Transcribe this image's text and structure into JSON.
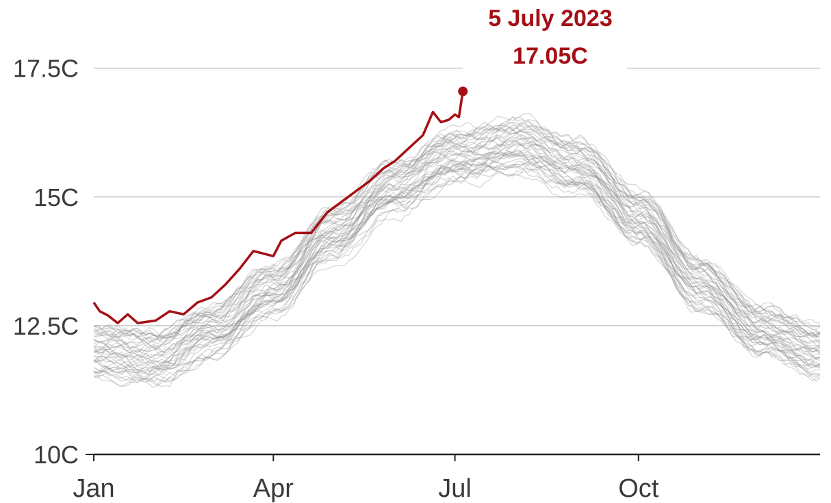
{
  "chart_data": {
    "type": "line",
    "title": "",
    "xlabel": "",
    "ylabel": "",
    "ylim": [
      10,
      18
    ],
    "yticks": [
      {
        "value": 10,
        "label": "10C"
      },
      {
        "value": 12.5,
        "label": "12.5C"
      },
      {
        "value": 15,
        "label": "15C"
      },
      {
        "value": 17.5,
        "label": "17.5C"
      }
    ],
    "xticks": [
      {
        "month_start": "Jan",
        "label": "Jan"
      },
      {
        "month_start": "Apr",
        "label": "Apr"
      },
      {
        "month_start": "Jul",
        "label": "Jul"
      },
      {
        "month_start": "Oct",
        "label": "Oct"
      }
    ],
    "grid": "horizontal",
    "colors": {
      "highlight": "#a50f15",
      "background_series": "#8c8c8c",
      "grid": "#c8c8c8",
      "axis": "#222222"
    },
    "background_series_description": "daily global sea surface temperature curves for previous years (grey, unlabelled)",
    "background_profile": [
      {
        "x": "Jan 1",
        "y": 12.0
      },
      {
        "x": "Feb 1",
        "y": 11.9
      },
      {
        "x": "Mar 1",
        "y": 12.4
      },
      {
        "x": "Apr 1",
        "y": 13.2
      },
      {
        "x": "May 1",
        "y": 14.3
      },
      {
        "x": "Jun 1",
        "y": 15.2
      },
      {
        "x": "Jul 1",
        "y": 15.8
      },
      {
        "x": "Aug 1",
        "y": 16.0
      },
      {
        "x": "Sep 1",
        "y": 15.6
      },
      {
        "x": "Oct 1",
        "y": 14.6
      },
      {
        "x": "Nov 1",
        "y": 13.3
      },
      {
        "x": "Dec 1",
        "y": 12.4
      },
      {
        "x": "Dec 31",
        "y": 12.0
      }
    ],
    "highlight_series": {
      "points": [
        {
          "x": "Jan 1",
          "y": 12.95
        },
        {
          "x": "Jan 4",
          "y": 12.78
        },
        {
          "x": "Jan 8",
          "y": 12.7
        },
        {
          "x": "Jan 13",
          "y": 12.55
        },
        {
          "x": "Jan 18",
          "y": 12.72
        },
        {
          "x": "Jan 23",
          "y": 12.55
        },
        {
          "x": "Feb 1",
          "y": 12.6
        },
        {
          "x": "Feb 8",
          "y": 12.78
        },
        {
          "x": "Feb 15",
          "y": 12.72
        },
        {
          "x": "Feb 22",
          "y": 12.95
        },
        {
          "x": "Mar 1",
          "y": 13.05
        },
        {
          "x": "Mar 8",
          "y": 13.3
        },
        {
          "x": "Mar 15",
          "y": 13.6
        },
        {
          "x": "Mar 22",
          "y": 13.95
        },
        {
          "x": "Apr 1",
          "y": 13.85
        },
        {
          "x": "Apr 5",
          "y": 14.15
        },
        {
          "x": "Apr 12",
          "y": 14.3
        },
        {
          "x": "Apr 20",
          "y": 14.3
        },
        {
          "x": "Apr 28",
          "y": 14.7
        },
        {
          "x": "May 5",
          "y": 14.9
        },
        {
          "x": "May 12",
          "y": 15.1
        },
        {
          "x": "May 19",
          "y": 15.3
        },
        {
          "x": "May 26",
          "y": 15.55
        },
        {
          "x": "Jun 1",
          "y": 15.7
        },
        {
          "x": "Jun 8",
          "y": 15.95
        },
        {
          "x": "Jun 15",
          "y": 16.2
        },
        {
          "x": "Jun 20",
          "y": 16.65
        },
        {
          "x": "Jun 24",
          "y": 16.45
        },
        {
          "x": "Jun 28",
          "y": 16.5
        },
        {
          "x": "Jul 1",
          "y": 16.6
        },
        {
          "x": "Jul 3",
          "y": 16.55
        },
        {
          "x": "Jul 5",
          "y": 17.05
        }
      ],
      "endpoint": {
        "x": "Jul 5",
        "y": 17.05
      }
    },
    "annotations": [
      {
        "text": "5 July 2023",
        "target": "Jul 5"
      },
      {
        "text": "17.05C",
        "target": "Jul 5"
      }
    ]
  }
}
